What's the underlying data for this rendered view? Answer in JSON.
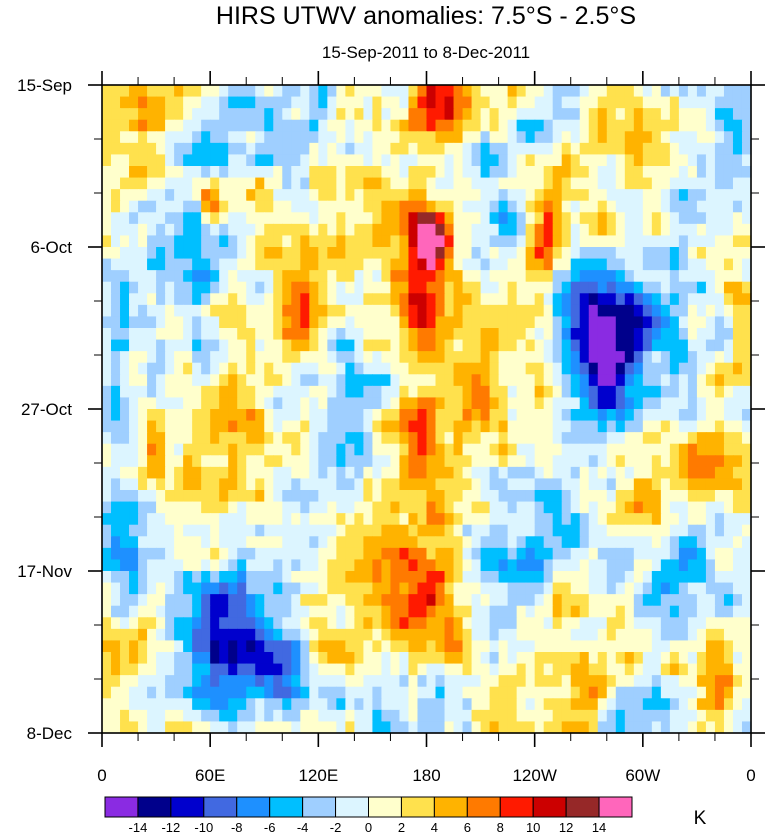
{
  "chart_data": {
    "type": "heatmap",
    "title": "HIRS UTWV anomalies: 7.5°S - 2.5°S",
    "subtitle": "15-Sep-2011 to 8-Dec-2011",
    "xlabel": "",
    "ylabel": "",
    "x_ticks": [
      "0",
      "60E",
      "120E",
      "180",
      "120W",
      "60W",
      "0"
    ],
    "x_range_deg_east": [
      0,
      360
    ],
    "y_ticks": [
      "15-Sep",
      "6-Oct",
      "27-Oct",
      "17-Nov",
      "8-Dec"
    ],
    "y_range_days_since_15sep": [
      0,
      84
    ],
    "colorbar": {
      "unit": "K",
      "levels": [
        -14,
        -12,
        -10,
        -8,
        -6,
        -4,
        -2,
        0,
        2,
        4,
        6,
        8,
        10,
        12,
        14
      ],
      "tick_labels": [
        "-14",
        "-12",
        "-10",
        "-8",
        "-6",
        "-4",
        "-2",
        "0",
        "2",
        "4",
        "6",
        "8",
        "10",
        "12",
        "14"
      ],
      "colors": [
        "#8a2be2",
        "#00008b",
        "#0000cd",
        "#4169e1",
        "#1e90ff",
        "#00bfff",
        "#9fcfff",
        "#dcf5ff",
        "#ffffcc",
        "#ffe14d",
        "#ffb300",
        "#ff7a00",
        "#ff1a00",
        "#cc0000",
        "#962828",
        "#ff66bb"
      ]
    },
    "features": [
      {
        "lon": 180,
        "day": 18,
        "amp": 11,
        "sx": 12,
        "sy": 3
      },
      {
        "lon": 177,
        "day": 28,
        "amp": 11,
        "sx": 14,
        "sy": 5
      },
      {
        "lon": 183,
        "day": 21,
        "amp": 12,
        "sx": 6,
        "sy": 2
      },
      {
        "lon": 190,
        "day": 3,
        "amp": 8,
        "sx": 14,
        "sy": 3
      },
      {
        "lon": 175,
        "day": 46,
        "amp": 8,
        "sx": 14,
        "sy": 4
      },
      {
        "lon": 178,
        "day": 68,
        "amp": 7,
        "sx": 16,
        "sy": 6
      },
      {
        "lon": 282,
        "day": 35,
        "amp": -13,
        "sx": 12,
        "sy": 5
      },
      {
        "lon": 268,
        "day": 29,
        "amp": -9,
        "sx": 12,
        "sy": 5
      },
      {
        "lon": 72,
        "day": 74,
        "amp": -10,
        "sx": 14,
        "sy": 5
      },
      {
        "lon": 100,
        "day": 77,
        "amp": -7,
        "sx": 10,
        "sy": 4
      },
      {
        "lon": 60,
        "day": 16,
        "amp": 9,
        "sx": 5,
        "sy": 3
      },
      {
        "lon": 108,
        "day": 30,
        "amp": 7,
        "sx": 8,
        "sy": 4
      },
      {
        "lon": 337,
        "day": 76,
        "amp": 9,
        "sx": 12,
        "sy": 5
      },
      {
        "lon": 245,
        "day": 21,
        "amp": 7,
        "sx": 8,
        "sy": 4
      },
      {
        "lon": 30,
        "day": 48,
        "amp": 8,
        "sx": 4,
        "sy": 2
      },
      {
        "lon": 55,
        "day": 8,
        "amp": -7,
        "sx": 12,
        "sy": 4
      },
      {
        "lon": 320,
        "day": 60,
        "amp": -6,
        "sx": 14,
        "sy": 6
      },
      {
        "lon": 15,
        "day": 62,
        "amp": -7,
        "sx": 10,
        "sy": 6
      }
    ]
  }
}
